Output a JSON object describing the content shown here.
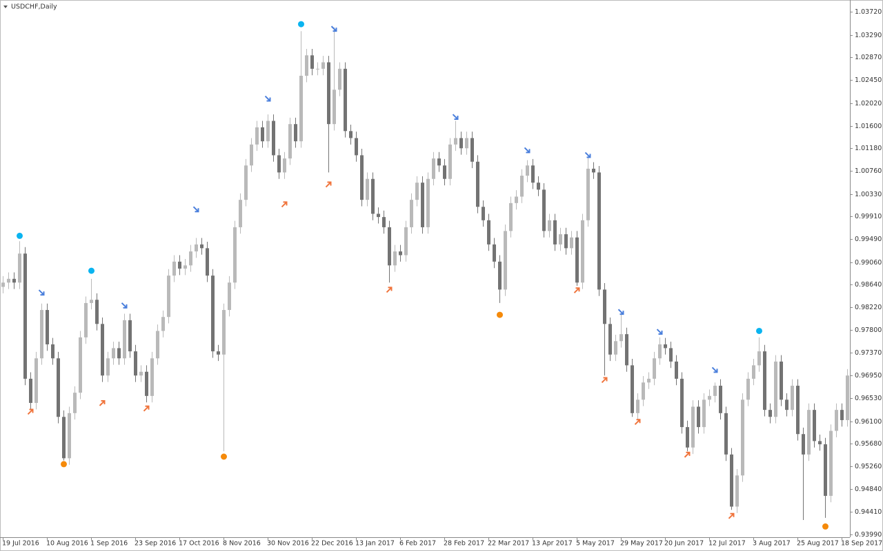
{
  "chart_data": {
    "type": "candlestick",
    "title": "USDCHF,Daily",
    "up_color": "#b9b9b9",
    "down_color": "#737373",
    "categories": [
      "19 Jul 2016",
      null,
      null,
      null,
      null,
      null,
      null,
      null,
      "10 Aug 2016",
      null,
      null,
      null,
      null,
      null,
      null,
      null,
      "1 Sep 2016",
      null,
      null,
      null,
      null,
      null,
      null,
      null,
      "23 Sep 2016",
      null,
      null,
      null,
      null,
      null,
      null,
      null,
      "17 Oct 2016",
      null,
      null,
      null,
      null,
      null,
      null,
      null,
      "8 Nov 2016",
      null,
      null,
      null,
      null,
      null,
      null,
      null,
      "30 Nov 2016",
      null,
      null,
      null,
      null,
      null,
      null,
      null,
      "22 Dec 2016",
      null,
      null,
      null,
      null,
      null,
      null,
      null,
      "13 Jan 2017",
      null,
      null,
      null,
      null,
      null,
      null,
      null,
      "6 Feb 2017",
      null,
      null,
      null,
      null,
      null,
      null,
      null,
      "28 Feb 2017",
      null,
      null,
      null,
      null,
      null,
      null,
      null,
      "22 Mar 2017",
      null,
      null,
      null,
      null,
      null,
      null,
      null,
      "13 Apr 2017",
      null,
      null,
      null,
      null,
      null,
      null,
      null,
      "5 May 2017",
      null,
      null,
      null,
      null,
      null,
      null,
      null,
      "29 May 2017",
      null,
      null,
      null,
      null,
      null,
      null,
      null,
      "20 Jun 2017",
      null,
      null,
      null,
      null,
      null,
      null,
      null,
      "12 Jul 2017",
      null,
      null,
      null,
      null,
      null,
      null,
      null,
      "3 Aug 2017",
      null,
      null,
      null,
      null,
      null,
      null,
      null,
      "25 Aug 2017",
      null,
      null,
      null,
      null,
      null,
      null,
      null,
      "18 Sep 2017",
      null
    ],
    "open": [
      0.986,
      0.9868,
      0.9875,
      0.9868,
      0.9922,
      0.9689,
      0.9644,
      0.9727,
      0.9817,
      0.9753,
      0.9727,
      0.9618,
      0.9541,
      0.9625,
      0.9663,
      0.9766,
      0.983,
      0.9836,
      0.9791,
      0.9695,
      0.9727,
      0.9746,
      0.9727,
      0.9798,
      0.974,
      0.9695,
      0.9702,
      0.9657,
      0.9727,
      0.9778,
      0.9804,
      0.9881,
      0.9907,
      0.9894,
      0.99,
      0.9926,
      0.9939,
      0.9932,
      0.9881,
      0.974,
      0.9734,
      0.9817,
      0.9868,
      0.9971,
      1.0022,
      1.0086,
      1.0125,
      1.0157,
      1.0131,
      1.0169,
      1.0105,
      1.0073,
      1.0099,
      1.0163,
      1.0131,
      1.0253,
      1.0291,
      1.0266,
      1.0266,
      1.0278,
      1.0163,
      1.0227,
      1.0266,
      1.015,
      1.0137,
      1.0105,
      1.0022,
      1.0061,
      0.9996,
      0.999,
      0.9971,
      0.99,
      0.9926,
      0.9919,
      0.9971,
      1.0022,
      1.0054,
      0.9971,
      1.0061,
      1.0099,
      1.0086,
      1.0061,
      1.0125,
      1.0137,
      1.0118,
      1.0137,
      1.0093,
      1.0009,
      0.9984,
      0.9939,
      0.9907,
      0.9855,
      0.9964,
      1.0016,
      1.0028,
      1.0067,
      1.0086,
      1.0054,
      1.0041,
      0.9964,
      0.9984,
      0.9939,
      0.9958,
      0.9932,
      0.9952,
      0.9868,
      0.9984,
      1.008,
      1.0073,
      0.9855,
      0.9791,
      0.9734,
      0.9759,
      0.9772,
      0.9714,
      0.9625,
      0.965,
      0.9682,
      0.9689,
      0.9727,
      0.9753,
      0.9746,
      0.9721,
      0.9689,
      0.9599,
      0.9561,
      0.9637,
      0.9599,
      0.965,
      0.9657,
      0.9676,
      0.9625,
      0.9548,
      0.9451,
      0.9509,
      0.965,
      0.9689,
      0.9714,
      0.974,
      0.9631,
      0.9618,
      0.9721,
      0.965,
      0.9631,
      0.9676,
      0.9586,
      0.9548,
      0.9631,
      0.9573,
      0.9567,
      0.9471,
      0.9592,
      0.9631,
      0.9612
    ],
    "high": [
      0.988,
      0.9887,
      0.9887,
      0.9945,
      0.9934,
      0.9701,
      0.9739,
      0.9829,
      0.9829,
      0.9765,
      0.9739,
      0.963,
      0.9637,
      0.9675,
      0.9778,
      0.9842,
      0.9875,
      0.9848,
      0.9803,
      0.9739,
      0.9758,
      0.9758,
      0.981,
      0.981,
      0.9752,
      0.9714,
      0.9714,
      0.9739,
      0.979,
      0.9816,
      0.9893,
      0.9919,
      0.9919,
      0.9912,
      0.9938,
      0.9951,
      0.9951,
      0.9944,
      0.9893,
      0.9752,
      0.9829,
      0.988,
      0.9983,
      1.0034,
      1.0098,
      1.0137,
      1.0169,
      1.0169,
      1.0181,
      1.0181,
      1.0117,
      1.0111,
      1.0175,
      1.0175,
      1.0336,
      1.0303,
      1.0303,
      1.0278,
      1.029,
      1.029,
      1.0343,
      1.0278,
      1.0278,
      1.0162,
      1.0149,
      1.0117,
      1.0073,
      1.0073,
      1.0008,
      1.0002,
      0.9983,
      0.9938,
      0.9938,
      0.9983,
      1.0034,
      1.0066,
      1.0066,
      1.0073,
      1.0111,
      1.0111,
      1.0098,
      1.0137,
      1.0169,
      1.0149,
      1.0149,
      1.0149,
      1.0105,
      1.0021,
      0.9996,
      0.9951,
      0.9919,
      0.9976,
      1.0028,
      1.004,
      1.0079,
      1.0096,
      1.0098,
      1.0066,
      1.0053,
      0.9996,
      0.9996,
      0.997,
      0.997,
      0.9964,
      0.9964,
      0.9996,
      1.0101,
      1.0092,
      1.0085,
      0.9867,
      0.9803,
      0.9771,
      0.9811,
      0.9784,
      0.9726,
      0.9662,
      0.9694,
      0.9701,
      0.9739,
      0.9766,
      0.9765,
      0.9758,
      0.9733,
      0.9701,
      0.9611,
      0.9649,
      0.9649,
      0.9662,
      0.9669,
      0.9682,
      0.9688,
      0.9637,
      0.956,
      0.9521,
      0.9662,
      0.9701,
      0.9726,
      0.9766,
      0.9752,
      0.9643,
      0.9733,
      0.9733,
      0.9662,
      0.9688,
      0.9688,
      0.9598,
      0.9643,
      0.9643,
      0.9585,
      0.9579,
      0.9604,
      0.9643,
      0.9643,
      0.9707
    ],
    "low": [
      0.9848,
      0.9856,
      0.9856,
      0.9856,
      0.9677,
      0.9632,
      0.9632,
      0.9715,
      0.9741,
      0.9715,
      0.9606,
      0.9537,
      0.9529,
      0.9613,
      0.9651,
      0.9754,
      0.9818,
      0.9779,
      0.9683,
      0.9683,
      0.9715,
      0.9715,
      0.9715,
      0.9728,
      0.9683,
      0.9683,
      0.9645,
      0.9645,
      0.9715,
      0.9766,
      0.9792,
      0.9869,
      0.9882,
      0.9882,
      0.9888,
      0.9914,
      0.992,
      0.9869,
      0.9728,
      0.9722,
      0.9554,
      0.9805,
      0.9856,
      0.9959,
      1.001,
      1.0074,
      1.0113,
      1.0119,
      1.0119,
      1.0093,
      1.0061,
      1.0061,
      1.0087,
      1.0119,
      1.0119,
      1.0241,
      1.0254,
      1.0254,
      1.0254,
      1.0073,
      1.0151,
      1.0215,
      1.0138,
      1.0125,
      1.0093,
      1.001,
      1.001,
      0.9984,
      0.9978,
      0.9959,
      0.9868,
      0.9888,
      0.9907,
      0.9907,
      0.9959,
      1.001,
      0.9959,
      0.9959,
      1.0049,
      1.0074,
      1.0049,
      1.0049,
      1.0113,
      1.0106,
      1.0106,
      1.0081,
      0.9997,
      0.9972,
      0.9927,
      0.9895,
      0.983,
      0.9843,
      0.9952,
      1.0004,
      1.0016,
      1.0055,
      1.0042,
      1.0029,
      0.9952,
      0.9952,
      0.9927,
      0.9927,
      0.992,
      0.992,
      0.9862,
      0.9856,
      0.9972,
      1.0061,
      0.9843,
      0.9695,
      0.9722,
      0.9722,
      0.9747,
      0.9702,
      0.9618,
      0.9613,
      0.9638,
      0.967,
      0.9677,
      0.9715,
      0.9734,
      0.9709,
      0.9677,
      0.9587,
      0.9554,
      0.9549,
      0.9587,
      0.9587,
      0.9638,
      0.9645,
      0.9613,
      0.9536,
      0.9445,
      0.9439,
      0.9497,
      0.9638,
      0.9677,
      0.9702,
      0.9619,
      0.9606,
      0.9606,
      0.9638,
      0.9619,
      0.9619,
      0.9574,
      0.9426,
      0.9536,
      0.9561,
      0.9555,
      0.943,
      0.9459,
      0.958,
      0.96,
      0.96
    ],
    "close": [
      0.9868,
      0.9875,
      0.9868,
      0.9922,
      0.9689,
      0.9644,
      0.9727,
      0.9817,
      0.9753,
      0.9727,
      0.9618,
      0.9541,
      0.9625,
      0.9663,
      0.9766,
      0.983,
      0.9836,
      0.9791,
      0.9695,
      0.9727,
      0.9746,
      0.9727,
      0.9798,
      0.974,
      0.9695,
      0.9702,
      0.9657,
      0.9727,
      0.9778,
      0.9804,
      0.9881,
      0.9907,
      0.9894,
      0.99,
      0.9926,
      0.9939,
      0.9932,
      0.9881,
      0.974,
      0.9734,
      0.9817,
      0.9868,
      0.9971,
      1.0022,
      1.0086,
      1.0125,
      1.0157,
      1.0131,
      1.0169,
      1.0105,
      1.0073,
      1.0099,
      1.0163,
      1.0131,
      1.0253,
      1.0291,
      1.0266,
      1.0266,
      1.0278,
      1.0163,
      1.0227,
      1.0266,
      1.015,
      1.0137,
      1.0105,
      1.0022,
      1.0061,
      0.9996,
      0.999,
      0.9971,
      0.99,
      0.9926,
      0.9919,
      0.9971,
      1.0022,
      1.0054,
      0.9971,
      1.0061,
      1.0099,
      1.0086,
      1.0061,
      1.0125,
      1.0137,
      1.0118,
      1.0137,
      1.0093,
      1.0009,
      0.9984,
      0.9939,
      0.9907,
      0.9855,
      0.9964,
      1.0016,
      1.0028,
      1.0067,
      1.0086,
      1.0054,
      1.0041,
      0.9964,
      0.9984,
      0.9939,
      0.9958,
      0.9932,
      0.9952,
      0.9868,
      0.9984,
      1.008,
      1.0073,
      0.9855,
      0.9791,
      0.9734,
      0.9759,
      0.9772,
      0.9714,
      0.9625,
      0.965,
      0.9682,
      0.9689,
      0.9727,
      0.9753,
      0.9746,
      0.9721,
      0.9689,
      0.9599,
      0.9561,
      0.9637,
      0.9599,
      0.965,
      0.9657,
      0.9676,
      0.9625,
      0.9548,
      0.9451,
      0.9509,
      0.965,
      0.9689,
      0.9714,
      0.974,
      0.9631,
      0.9618,
      0.9721,
      0.965,
      0.9631,
      0.9676,
      0.9586,
      0.9548,
      0.9631,
      0.9573,
      0.9567,
      0.9471,
      0.9592,
      0.9631,
      0.9612,
      0.9695
    ],
    "markers": [
      {
        "type": "arrow-down",
        "color": "#4a7fdc",
        "x": [
          7,
          22,
          35,
          48,
          60,
          82,
          95,
          106,
          112,
          119,
          129
        ],
        "values": [
          0.9849,
          0.9825,
          1.0004,
          1.021,
          1.034,
          1.0176,
          1.0114,
          1.0105,
          0.9813,
          0.9776,
          0.9705
        ]
      },
      {
        "type": "arrow-up",
        "color": "#f0743c",
        "x": [
          5,
          18,
          26,
          51,
          59,
          70,
          104,
          109,
          115,
          124,
          132
        ],
        "values": [
          0.9628,
          0.9644,
          0.9634,
          1.0014,
          1.0051,
          0.9855,
          0.9854,
          0.9687,
          0.9609,
          0.9548,
          0.9434
        ]
      },
      {
        "type": "dot",
        "color": "#0ab4f0",
        "x": [
          3,
          16,
          54,
          137
        ],
        "values": [
          0.9955,
          0.989,
          1.0349,
          0.9778
        ]
      },
      {
        "type": "dot",
        "color": "#f58a0a",
        "x": [
          11,
          40,
          90,
          149
        ],
        "values": [
          0.953,
          0.9544,
          0.9808,
          0.9414
        ]
      }
    ],
    "ylim": [
      0.9394,
      1.0394
    ],
    "yticks": [
      {
        "value": 1.0372,
        "label": "1.03720"
      },
      {
        "value": 1.0329,
        "label": "1.03290"
      },
      {
        "value": 1.0287,
        "label": "1.02870"
      },
      {
        "value": 1.0245,
        "label": "1.02450"
      },
      {
        "value": 1.0202,
        "label": "1.02020"
      },
      {
        "value": 1.016,
        "label": "1.01600"
      },
      {
        "value": 1.0118,
        "label": "1.01180"
      },
      {
        "value": 1.0076,
        "label": "1.00760"
      },
      {
        "value": 1.0033,
        "label": "1.00330"
      },
      {
        "value": 0.9991,
        "label": "0.99910"
      },
      {
        "value": 0.9949,
        "label": "0.99490"
      },
      {
        "value": 0.9906,
        "label": "0.99060"
      },
      {
        "value": 0.9864,
        "label": "0.98640"
      },
      {
        "value": 0.9822,
        "label": "0.98220"
      },
      {
        "value": 0.978,
        "label": "0.97800"
      },
      {
        "value": 0.9737,
        "label": "0.97370"
      },
      {
        "value": 0.9695,
        "label": "0.96950"
      },
      {
        "value": 0.9653,
        "label": "0.96530"
      },
      {
        "value": 0.961,
        "label": "0.96100"
      },
      {
        "value": 0.9568,
        "label": "0.95680"
      },
      {
        "value": 0.9526,
        "label": "0.95260"
      },
      {
        "value": 0.9484,
        "label": "0.94840"
      },
      {
        "value": 0.9441,
        "label": "0.94410"
      },
      {
        "value": 0.9399,
        "label": "0.93990"
      }
    ]
  }
}
